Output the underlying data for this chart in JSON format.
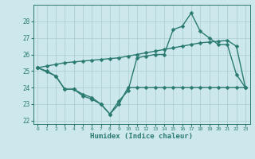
{
  "xlabel": "Humidex (Indice chaleur)",
  "bg_color": "#cce8ec",
  "line_color": "#2a7a70",
  "grid_color": "#aaccd0",
  "x_values": [
    0,
    1,
    2,
    3,
    4,
    5,
    6,
    7,
    8,
    9,
    10,
    11,
    12,
    13,
    14,
    15,
    16,
    17,
    18,
    19,
    20,
    21,
    22,
    23
  ],
  "line1_y": [
    25.2,
    25.0,
    24.7,
    23.9,
    23.9,
    23.6,
    23.4,
    23.0,
    22.4,
    23.2,
    23.8,
    25.8,
    25.9,
    26.0,
    26.0,
    27.5,
    27.7,
    28.5,
    27.4,
    27.0,
    26.6,
    26.6,
    24.8,
    24.0
  ],
  "line2_y": [
    25.2,
    24.95,
    24.7,
    23.9,
    23.9,
    23.5,
    23.3,
    23.0,
    22.4,
    23.0,
    24.0,
    24.0,
    24.0,
    24.0,
    24.0,
    24.0,
    24.0,
    24.0,
    24.0,
    24.0,
    24.0,
    24.0,
    24.0,
    24.0
  ],
  "line3_y": [
    25.2,
    25.3,
    25.4,
    25.5,
    25.55,
    25.6,
    25.65,
    25.7,
    25.75,
    25.8,
    25.9,
    26.0,
    26.1,
    26.2,
    26.3,
    26.4,
    26.5,
    26.6,
    26.7,
    26.75,
    26.8,
    26.85,
    26.5,
    24.0
  ],
  "ylim": [
    21.8,
    29.0
  ],
  "xlim": [
    -0.5,
    23.5
  ],
  "yticks": [
    22,
    23,
    24,
    25,
    26,
    27,
    28
  ],
  "xticks": [
    0,
    1,
    2,
    3,
    4,
    5,
    6,
    7,
    8,
    9,
    10,
    11,
    12,
    13,
    14,
    15,
    16,
    17,
    18,
    19,
    20,
    21,
    22,
    23
  ],
  "markersize": 2.5,
  "linewidth": 1.0
}
